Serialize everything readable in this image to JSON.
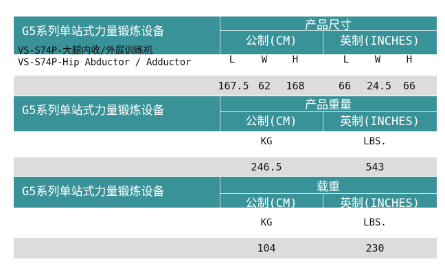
{
  "equipment_series": "G5系列单站式力量锻炼设备",
  "colors": {
    "header_bg": "#3a9299",
    "stripe_bg": "#dcdcdc"
  },
  "dimensions": {
    "title": "产品尺寸",
    "metric_label": "公制(CM)",
    "imperial_label": "英制(INCHES)",
    "product_name_cn": "VS-S74P-大腿内收/外展训练机",
    "product_name_en": "VS-S74P-Hip Abductor / Adductor",
    "columns": [
      "L",
      "W",
      "H",
      "L",
      "W",
      "H"
    ],
    "values": [
      "167.5",
      "62",
      "168",
      "66",
      "24.5",
      "66"
    ]
  },
  "weight": {
    "title": "产品重量",
    "metric_label": "公制(CM)",
    "imperial_label": "英制(INCHES)",
    "metric_unit": "KG",
    "imperial_unit": "LBS.",
    "metric_value": "246.5",
    "imperial_value": "543"
  },
  "load": {
    "title": "载重",
    "metric_label": "公制(CM)",
    "imperial_label": "英制(INCHES)",
    "metric_unit": "KG",
    "imperial_unit": "LBS.",
    "metric_value": "104",
    "imperial_value": "230"
  }
}
